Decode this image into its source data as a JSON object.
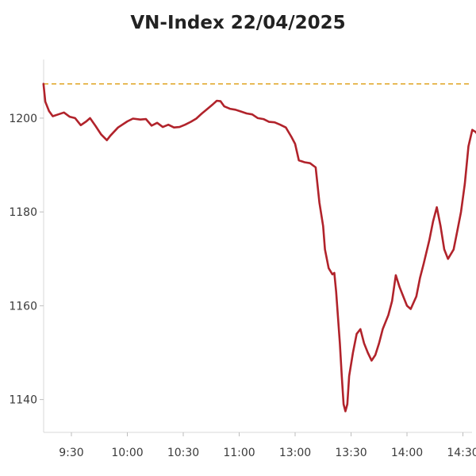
{
  "chart_data": {
    "type": "line",
    "title": "VN-Index 22/04/2025",
    "xlabel": "",
    "ylabel": "",
    "x_ticks": [
      "9:30",
      "10:00",
      "10:30",
      "11:00",
      "13:00",
      "13:30",
      "14:00",
      "14:30"
    ],
    "y_ticks": [
      1140,
      1160,
      1180,
      1200
    ],
    "ylim": [
      1133,
      1212.5
    ],
    "reference_value": 1207.3,
    "grid": false,
    "series": [
      {
        "name": "",
        "color": "#b1232b",
        "points": [
          [
            "9:15",
            1207.3
          ],
          [
            "9:16",
            1203.5
          ],
          [
            "9:18",
            1201.5
          ],
          [
            "9:20",
            1200.4
          ],
          [
            "9:23",
            1200.8
          ],
          [
            "9:26",
            1201.2
          ],
          [
            "9:29",
            1200.3
          ],
          [
            "9:32",
            1200.0
          ],
          [
            "9:35",
            1198.5
          ],
          [
            "9:38",
            1199.3
          ],
          [
            "9:40",
            1200.0
          ],
          [
            "9:43",
            1198.3
          ],
          [
            "9:46",
            1196.5
          ],
          [
            "9:49",
            1195.3
          ],
          [
            "9:51",
            1196.3
          ],
          [
            "9:55",
            1198.0
          ],
          [
            "10:00",
            1199.3
          ],
          [
            "10:03",
            1199.9
          ],
          [
            "10:07",
            1199.7
          ],
          [
            "10:10",
            1199.8
          ],
          [
            "10:13",
            1198.4
          ],
          [
            "10:16",
            1199.0
          ],
          [
            "10:19",
            1198.1
          ],
          [
            "10:22",
            1198.6
          ],
          [
            "10:25",
            1198.0
          ],
          [
            "10:28",
            1198.1
          ],
          [
            "10:31",
            1198.6
          ],
          [
            "10:34",
            1199.2
          ],
          [
            "10:37",
            1199.9
          ],
          [
            "10:40",
            1201.0
          ],
          [
            "10:43",
            1202.0
          ],
          [
            "10:46",
            1203.0
          ],
          [
            "10:48",
            1203.7
          ],
          [
            "10:50",
            1203.6
          ],
          [
            "10:52",
            1202.5
          ],
          [
            "10:55",
            1202.0
          ],
          [
            "10:58",
            1201.8
          ],
          [
            "11:01",
            1201.4
          ],
          [
            "11:04",
            1201.0
          ],
          [
            "11:07",
            1200.8
          ],
          [
            "11:10",
            1200.0
          ],
          [
            "11:13",
            1199.8
          ],
          [
            "11:16",
            1199.2
          ],
          [
            "11:19",
            1199.1
          ],
          [
            "11:22",
            1198.6
          ],
          [
            "11:25",
            1198.0
          ],
          [
            "11:28",
            1196.0
          ],
          [
            "11:30",
            1194.5
          ],
          [
            "13:02",
            1191.0
          ],
          [
            "13:05",
            1190.6
          ],
          [
            "13:08",
            1190.4
          ],
          [
            "13:11",
            1189.5
          ],
          [
            "13:13",
            1182.0
          ],
          [
            "13:15",
            1177.0
          ],
          [
            "13:16",
            1172.0
          ],
          [
            "13:18",
            1168.0
          ],
          [
            "13:20",
            1166.7
          ],
          [
            "13:21",
            1167.0
          ],
          [
            "13:22",
            1163.0
          ],
          [
            "13:24",
            1152.0
          ],
          [
            "13:25",
            1145.0
          ],
          [
            "13:26",
            1139.0
          ],
          [
            "13:27",
            1137.5
          ],
          [
            "13:28",
            1139.0
          ],
          [
            "13:29",
            1145.0
          ],
          [
            "13:31",
            1150.0
          ],
          [
            "13:33",
            1154.0
          ],
          [
            "13:35",
            1155.0
          ],
          [
            "13:37",
            1152.0
          ],
          [
            "13:39",
            1150.0
          ],
          [
            "13:41",
            1148.3
          ],
          [
            "13:43",
            1149.5
          ],
          [
            "13:45",
            1152.0
          ],
          [
            "13:47",
            1155.0
          ],
          [
            "13:50",
            1158.0
          ],
          [
            "13:52",
            1161.0
          ],
          [
            "13:54",
            1166.5
          ],
          [
            "13:56",
            1164.0
          ],
          [
            "13:58",
            1162.0
          ],
          [
            "14:00",
            1160.0
          ],
          [
            "14:02",
            1159.3
          ],
          [
            "14:05",
            1162.0
          ],
          [
            "14:07",
            1166.0
          ],
          [
            "14:09",
            1169.0
          ],
          [
            "14:12",
            1174.0
          ],
          [
            "14:14",
            1178.0
          ],
          [
            "14:16",
            1181.0
          ],
          [
            "14:18",
            1177.0
          ],
          [
            "14:20",
            1172.0
          ],
          [
            "14:22",
            1170.0
          ],
          [
            "14:25",
            1172.0
          ],
          [
            "14:27",
            1176.0
          ],
          [
            "14:29",
            1180.0
          ],
          [
            "14:31",
            1186.0
          ],
          [
            "14:33",
            1194.0
          ],
          [
            "14:35",
            1197.5
          ],
          [
            "14:37",
            1197.0
          ],
          [
            "14:38",
            1196.3
          ],
          [
            "14:40",
            1197.3
          ]
        ]
      }
    ]
  }
}
